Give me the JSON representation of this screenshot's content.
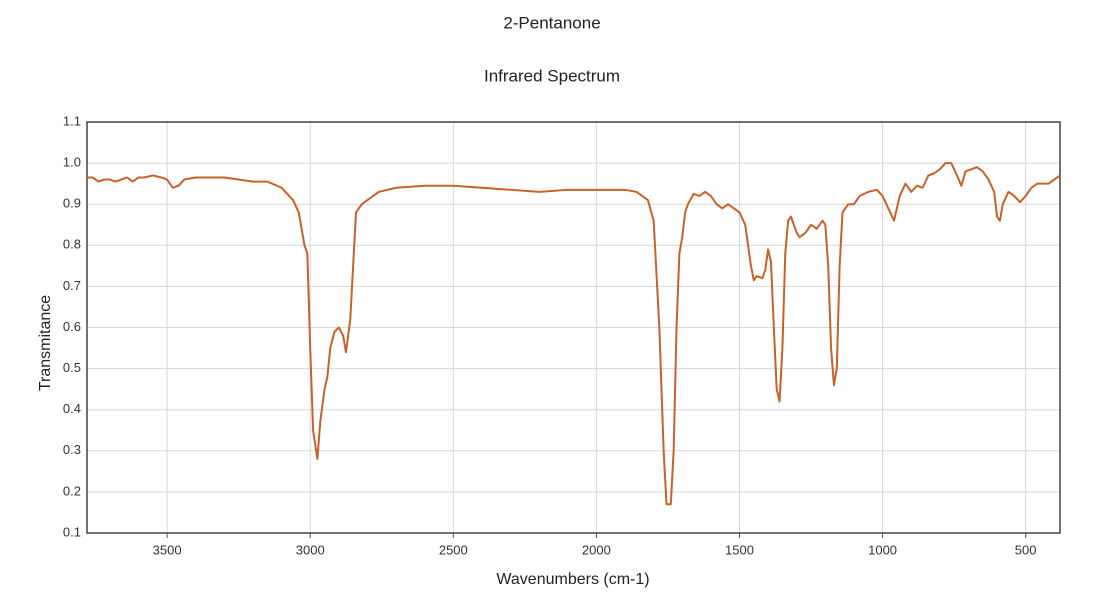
{
  "chart_data": {
    "type": "line",
    "title": "2-Pentanone",
    "subtitle": "Infrared Spectrum",
    "x_label": "Wavenumbers (cm-1)",
    "y_label": "Transmitance",
    "xlim": [
      3780,
      380
    ],
    "ylim": [
      0.1,
      1.1
    ],
    "xticks": [
      3500,
      3000,
      2500,
      2000,
      1500,
      1000,
      500
    ],
    "yticks": [
      0.1,
      0.2,
      0.3,
      0.4,
      0.5,
      0.6,
      0.7,
      0.8,
      0.9,
      {
        "value": 1,
        "label": "1.0"
      },
      1.1
    ],
    "grid": true,
    "x": [
      3780,
      3760,
      3740,
      3720,
      3700,
      3680,
      3660,
      3640,
      3620,
      3600,
      3580,
      3550,
      3520,
      3500,
      3480,
      3460,
      3440,
      3400,
      3300,
      3200,
      3150,
      3100,
      3060,
      3040,
      3020,
      3010,
      3000,
      2990,
      2975,
      2965,
      2950,
      2940,
      2930,
      2915,
      2900,
      2885,
      2875,
      2860,
      2850,
      2840,
      2820,
      2800,
      2760,
      2700,
      2600,
      2500,
      2400,
      2300,
      2200,
      2100,
      2000,
      1900,
      1860,
      1820,
      1800,
      1780,
      1765,
      1755,
      1740,
      1730,
      1720,
      1710,
      1700,
      1690,
      1680,
      1660,
      1640,
      1620,
      1600,
      1580,
      1560,
      1540,
      1520,
      1500,
      1480,
      1460,
      1450,
      1440,
      1420,
      1410,
      1400,
      1390,
      1380,
      1370,
      1360,
      1350,
      1340,
      1330,
      1320,
      1300,
      1290,
      1270,
      1250,
      1230,
      1210,
      1200,
      1190,
      1180,
      1170,
      1160,
      1150,
      1140,
      1120,
      1100,
      1080,
      1050,
      1020,
      1000,
      980,
      960,
      940,
      920,
      900,
      880,
      860,
      840,
      820,
      800,
      780,
      760,
      740,
      725,
      710,
      690,
      670,
      650,
      630,
      610,
      600,
      590,
      580,
      560,
      540,
      520,
      500,
      480,
      460,
      420,
      380
    ],
    "series": [
      {
        "name": "Transmitance",
        "color": "#c8612a",
        "values": [
          0.965,
          0.965,
          0.955,
          0.96,
          0.96,
          0.955,
          0.96,
          0.965,
          0.955,
          0.965,
          0.965,
          0.97,
          0.965,
          0.96,
          0.94,
          0.945,
          0.96,
          0.965,
          0.965,
          0.955,
          0.955,
          0.94,
          0.91,
          0.88,
          0.8,
          0.78,
          0.55,
          0.35,
          0.28,
          0.37,
          0.45,
          0.48,
          0.55,
          0.59,
          0.6,
          0.58,
          0.54,
          0.62,
          0.75,
          0.88,
          0.9,
          0.91,
          0.93,
          0.94,
          0.945,
          0.945,
          0.94,
          0.935,
          0.93,
          0.935,
          0.935,
          0.935,
          0.93,
          0.91,
          0.86,
          0.6,
          0.3,
          0.17,
          0.17,
          0.3,
          0.6,
          0.78,
          0.82,
          0.88,
          0.9,
          0.925,
          0.92,
          0.93,
          0.92,
          0.9,
          0.89,
          0.9,
          0.89,
          0.88,
          0.85,
          0.75,
          0.715,
          0.725,
          0.72,
          0.74,
          0.79,
          0.76,
          0.6,
          0.45,
          0.42,
          0.55,
          0.78,
          0.86,
          0.87,
          0.83,
          0.82,
          0.83,
          0.85,
          0.84,
          0.86,
          0.85,
          0.75,
          0.55,
          0.46,
          0.5,
          0.75,
          0.88,
          0.9,
          0.9,
          0.92,
          0.93,
          0.935,
          0.92,
          0.89,
          0.86,
          0.92,
          0.95,
          0.93,
          0.945,
          0.94,
          0.97,
          0.975,
          0.985,
          1.0,
          1.0,
          0.97,
          0.945,
          0.98,
          0.985,
          0.99,
          0.98,
          0.96,
          0.93,
          0.87,
          0.86,
          0.9,
          0.93,
          0.92,
          0.905,
          0.92,
          0.94,
          0.95,
          0.95,
          0.97
        ]
      }
    ]
  }
}
